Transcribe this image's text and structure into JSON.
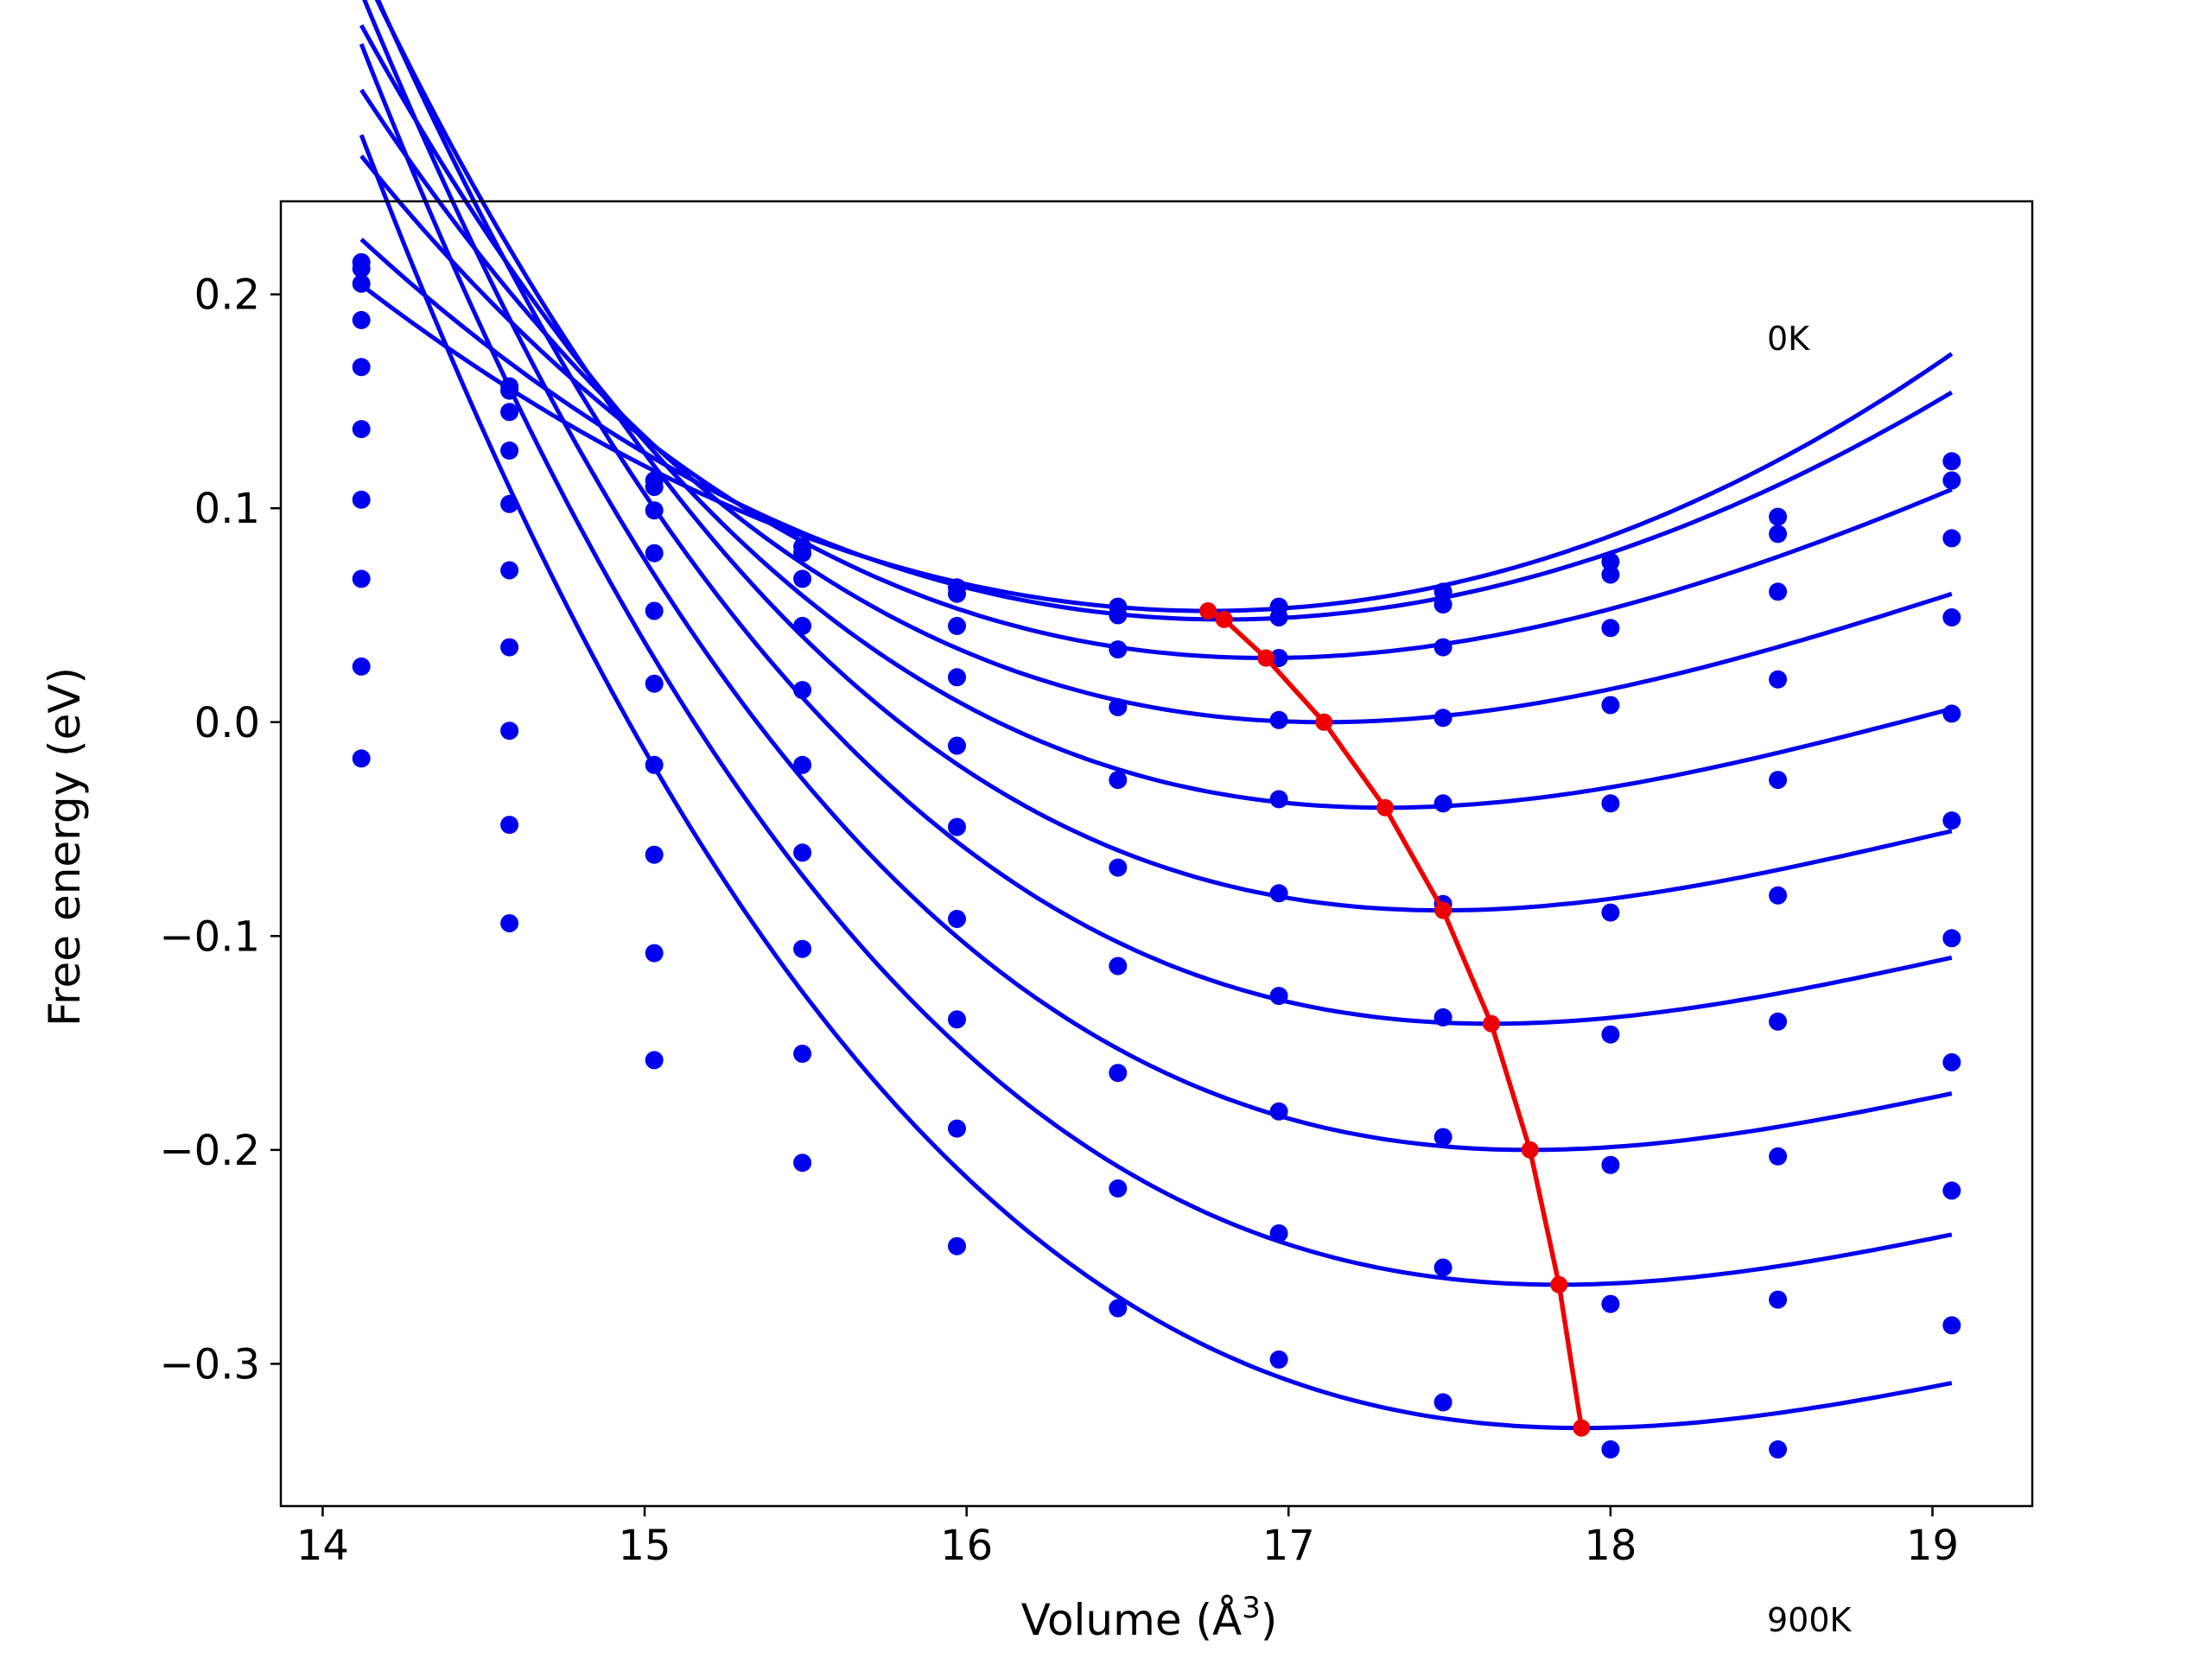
{
  "chart_data": {
    "type": "line",
    "xlabel": "Volume (Å",
    "xlabel_sup": "3",
    "xlabel_close": ")",
    "ylabel": "Free energy (eV)",
    "xlim": [
      13.87,
      19.31
    ],
    "ylim": [
      -0.3665,
      0.2435
    ],
    "x_ticks": [
      14,
      15,
      16,
      17,
      18,
      19
    ],
    "x_tick_labels": [
      "14",
      "15",
      "16",
      "17",
      "18",
      "19"
    ],
    "y_ticks": [
      0.2,
      0.1,
      0.0,
      -0.1,
      -0.2,
      -0.3
    ],
    "y_tick_labels": [
      "0.2",
      "0.1",
      "0.0",
      "−0.1",
      "−0.2",
      "−0.3"
    ],
    "grid": false,
    "colors": {
      "curves": "#0000ee",
      "minima": "#ee0000",
      "axes": "#000000"
    },
    "annotations": [
      "0K",
      "900K"
    ],
    "volumes": [
      14.12,
      14.58,
      15.03,
      15.49,
      15.97,
      16.47,
      16.97,
      17.48,
      18.0,
      18.52,
      19.06
    ],
    "series": [
      {
        "values": [
          0.215,
          0.157,
          0.113,
          0.082,
          0.063,
          0.054,
          0.054,
          0.061,
          0.075,
          0.096,
          0.122
        ],
        "fit": {
          "v0": 16.75,
          "e0": 0.052,
          "a": 0.0223,
          "b": 0.0001
        }
      },
      {
        "values": [
          0.212,
          0.155,
          0.11,
          0.079,
          0.06,
          0.05,
          0.049,
          0.055,
          0.069,
          0.088,
          0.113
        ],
        "fit": {
          "v0": 16.8,
          "e0": 0.048,
          "a": 0.0226,
          "b": -0.0008
        }
      },
      {
        "values": [
          0.205,
          0.145,
          0.099,
          0.067,
          0.045,
          0.034,
          0.03,
          0.035,
          0.044,
          0.061,
          0.086
        ],
        "fit": {
          "v0": 16.93,
          "e0": 0.03,
          "a": 0.0227,
          "b": -0.0025
        }
      },
      {
        "values": [
          0.188,
          0.127,
          0.079,
          0.045,
          0.021,
          0.007,
          0.001,
          0.002,
          0.008,
          0.02,
          0.049
        ],
        "fit": {
          "v0": 17.11,
          "e0": 0.0,
          "a": 0.0226,
          "b": -0.0035
        }
      },
      {
        "values": [
          0.166,
          0.102,
          0.052,
          0.015,
          -0.011,
          -0.027,
          -0.036,
          -0.038,
          -0.038,
          -0.027,
          0.004
        ],
        "fit": {
          "v0": 17.3,
          "e0": -0.04,
          "a": 0.0225,
          "b": -0.0043
        }
      },
      {
        "values": [
          0.137,
          0.071,
          0.018,
          -0.02,
          -0.049,
          -0.068,
          -0.08,
          -0.085,
          -0.089,
          -0.081,
          -0.046
        ],
        "fit": {
          "v0": 17.48,
          "e0": -0.088,
          "a": 0.0226,
          "b": -0.0049
        }
      },
      {
        "values": [
          0.104,
          0.035,
          -0.02,
          -0.061,
          -0.092,
          -0.114,
          -0.128,
          -0.138,
          -0.146,
          -0.14,
          -0.101
        ],
        "fit": {
          "v0": 17.63,
          "e0": -0.141,
          "a": 0.0224,
          "b": -0.0051
        }
      },
      {
        "values": [
          0.067,
          -0.004,
          -0.062,
          -0.106,
          -0.139,
          -0.164,
          -0.182,
          -0.194,
          -0.207,
          -0.203,
          -0.159
        ],
        "fit": {
          "v0": 17.75,
          "e0": -0.2,
          "a": 0.0222,
          "b": -0.0052
        }
      },
      {
        "values": [
          0.026,
          -0.048,
          -0.108,
          -0.155,
          -0.19,
          -0.218,
          -0.239,
          -0.255,
          -0.272,
          -0.27,
          -0.219
        ],
        "fit": {
          "v0": 17.84,
          "e0": -0.263,
          "a": 0.0222,
          "b": -0.0053
        }
      },
      {
        "values": [
          -0.017,
          -0.094,
          -0.158,
          -0.206,
          -0.245,
          -0.274,
          -0.298,
          -0.318,
          -0.34,
          -0.34,
          -0.282
        ],
        "fit": {
          "v0": 17.91,
          "e0": -0.33,
          "a": 0.022,
          "b": -0.0053
        }
      }
    ],
    "minima": {
      "x": [
        16.75,
        16.8,
        16.93,
        17.11,
        17.3,
        17.48,
        17.63,
        17.75,
        17.84,
        17.91
      ],
      "y": [
        0.052,
        0.048,
        0.03,
        0.0,
        -0.04,
        -0.088,
        -0.141,
        -0.2,
        -0.263,
        -0.33
      ]
    }
  }
}
